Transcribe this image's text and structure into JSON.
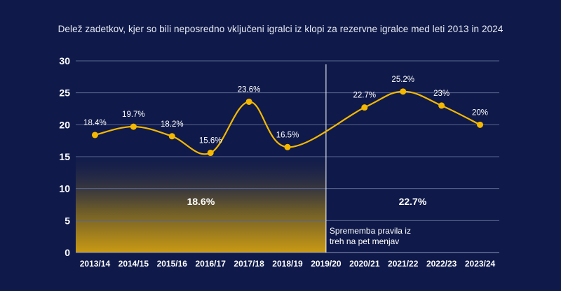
{
  "chart_data": {
    "type": "line",
    "title": "Delež zadetkov, kjer so bili neposredno vključeni igralci iz klopi za rezervne igralce med leti 2013 in 2024",
    "categories": [
      "2013/14",
      "2014/15",
      "2015/16",
      "2016/17",
      "2017/18",
      "2018/19",
      "2019/20",
      "2020/21",
      "2021/22",
      "2022/23",
      "2023/24"
    ],
    "values": [
      18.4,
      19.7,
      18.2,
      15.6,
      23.6,
      16.5,
      null,
      22.7,
      25.2,
      23,
      20
    ],
    "data_labels": [
      "18.4%",
      "19.7%",
      "18.2%",
      "15.6%",
      "23.6%",
      "16.5%",
      "",
      "22.7%",
      "25.2%",
      "23%",
      "20%"
    ],
    "ylim": [
      0,
      30
    ],
    "yticks": [
      "0",
      "5",
      "10",
      "15",
      "20",
      "25",
      "30"
    ],
    "grid": true,
    "period_averages": [
      {
        "label": "18.6%",
        "value": 18.6
      },
      {
        "label": "22.7%",
        "value": 22.7
      }
    ],
    "annotation": {
      "lines": [
        "Sprememba pravila iz",
        "treh na pet menjav"
      ]
    },
    "colors": {
      "background": "#0f1a4a",
      "line": "#f5b800",
      "grid": "#5a6590",
      "bar_top": "#1c2450",
      "bar_bottom": "#c99a14"
    }
  }
}
